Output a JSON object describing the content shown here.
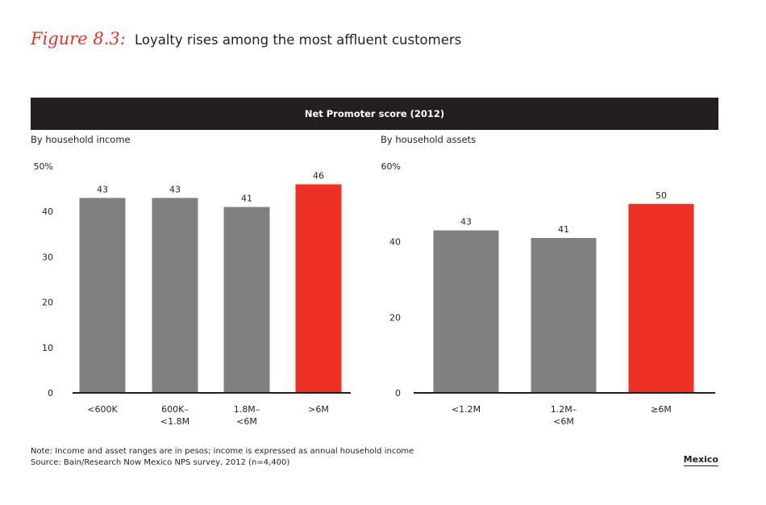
{
  "figure": {
    "number": "Figure 8.3:",
    "title": "Loyalty rises among the most affluent customers"
  },
  "banner": "Net Promoter score (2012)",
  "colors": {
    "gray": "#808083",
    "red": "#ee3124",
    "dark": "#231f20"
  },
  "chart_data": [
    {
      "type": "bar",
      "panel_label": "By household income",
      "categories": [
        [
          "<600K"
        ],
        [
          "600K–",
          "<1.8M"
        ],
        [
          "1.8M–",
          "<6M"
        ],
        [
          ">6M"
        ]
      ],
      "values": [
        43,
        43,
        41,
        46
      ],
      "highlight": [
        false,
        false,
        false,
        true
      ],
      "value_labels": [
        "43",
        "43",
        "41",
        "46"
      ],
      "ylim": [
        0,
        50
      ],
      "yticks": [
        {
          "value": 0,
          "label": "0"
        },
        {
          "value": 10,
          "label": "10"
        },
        {
          "value": 20,
          "label": "20"
        },
        {
          "value": 30,
          "label": "30"
        },
        {
          "value": 40,
          "label": "40"
        },
        {
          "value": 50,
          "label": "50%"
        }
      ]
    },
    {
      "type": "bar",
      "panel_label": "By household assets",
      "categories": [
        [
          "<1.2M"
        ],
        [
          "1.2M–",
          "<6M"
        ],
        [
          "≥6M"
        ]
      ],
      "values": [
        43,
        41,
        50
      ],
      "highlight": [
        false,
        false,
        true
      ],
      "value_labels": [
        "43",
        "41",
        "50"
      ],
      "ylim": [
        0,
        60
      ],
      "yticks": [
        {
          "value": 0,
          "label": "0"
        },
        {
          "value": 20,
          "label": "20"
        },
        {
          "value": 40,
          "label": "40"
        },
        {
          "value": 60,
          "label": "60%"
        }
      ]
    }
  ],
  "notes": [
    "Note: Income and asset ranges are in pesos; income is expressed as annual household income",
    "Source: Bain/Research Now Mexico NPS survey, 2012 (n=4,400)"
  ],
  "region": "Mexico"
}
